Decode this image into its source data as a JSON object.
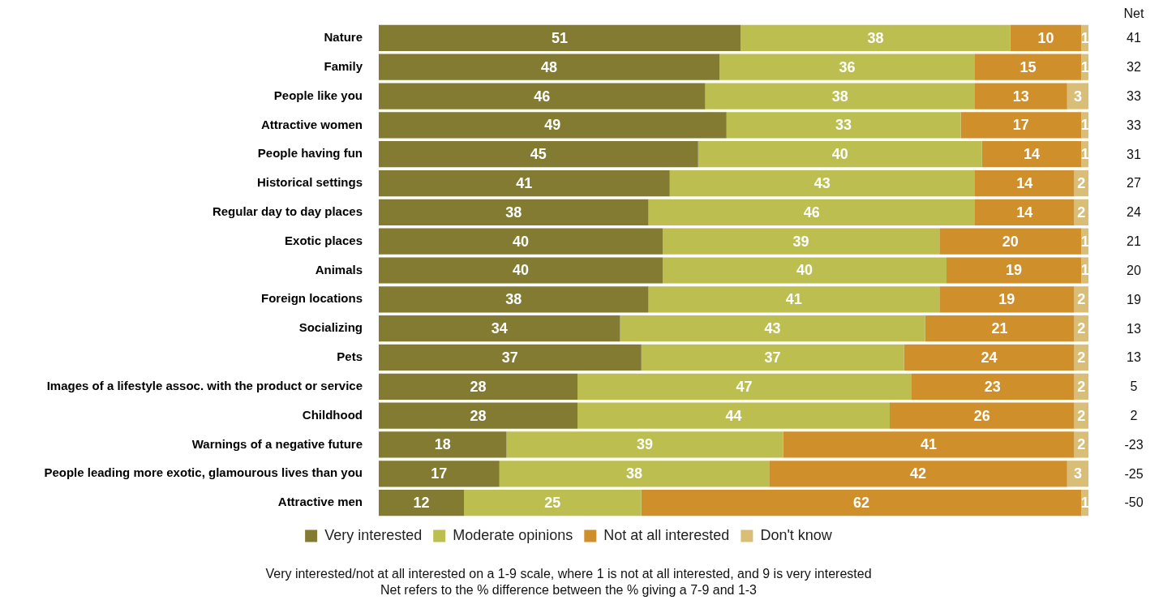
{
  "chart_data": {
    "type": "bar",
    "orientation": "horizontal",
    "stacked": true,
    "data_labels": true,
    "legend": "bottom",
    "tick_labels": "y",
    "xlim": [
      0,
      100
    ],
    "categories": [
      "Nature",
      "Family",
      "People like you",
      "Attractive women",
      "People having fun",
      "Historical settings",
      "Regular day to day places",
      "Exotic places",
      "Animals",
      "Foreign locations",
      "Socializing",
      "Pets",
      "Images of a lifestyle assoc. with the product or service",
      "Childhood",
      "Warnings of a negative future",
      "People leading more exotic, glamourous lives than you",
      "Attractive men"
    ],
    "series": [
      {
        "name": "Very interested",
        "color": "#827b31",
        "values": [
          51,
          48,
          46,
          49,
          45,
          41,
          38,
          40,
          40,
          38,
          34,
          37,
          28,
          28,
          18,
          17,
          12
        ]
      },
      {
        "name": "Moderate opinions",
        "color": "#bcbf4f",
        "values": [
          38,
          36,
          38,
          33,
          40,
          43,
          46,
          39,
          40,
          41,
          43,
          37,
          47,
          44,
          39,
          38,
          25
        ]
      },
      {
        "name": "Not at all interested",
        "color": "#cf8f2b",
        "values": [
          10,
          15,
          13,
          17,
          14,
          14,
          14,
          20,
          19,
          19,
          21,
          24,
          23,
          26,
          41,
          42,
          62
        ]
      },
      {
        "name": "Don't know",
        "color": "#d9be78",
        "values": [
          1,
          1,
          3,
          1,
          1,
          2,
          2,
          1,
          1,
          2,
          2,
          2,
          2,
          2,
          2,
          3,
          1
        ]
      }
    ],
    "annotations": [
      "Net",
      "41",
      "32",
      "33",
      "33",
      "31",
      "27",
      "24",
      "21",
      "20",
      "19",
      "13",
      "13",
      "5",
      "2",
      "-23",
      "-25",
      "-50",
      "Very interested/not at all interested on a 1-9 scale, where 1 is not at all interested, and 9 is very interested",
      "Net refers to the % difference between the % giving a 7-9 and 1-3"
    ]
  }
}
